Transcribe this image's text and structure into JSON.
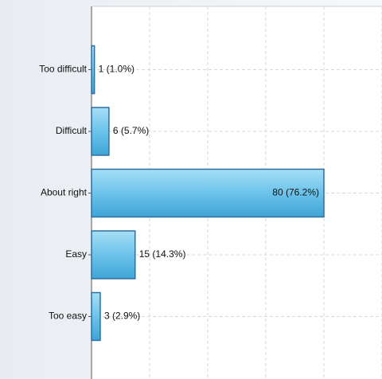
{
  "chart_data": {
    "type": "bar",
    "orientation": "horizontal",
    "categories": [
      "Too difficult",
      "Difficult",
      "About right",
      "Easy",
      "Too easy"
    ],
    "values": [
      1,
      6,
      80,
      15,
      3
    ],
    "value_labels": [
      "1 (1.0%)",
      "6 (5.7%)",
      "80 (76.2%)",
      "15 (14.3%)",
      "3 (2.9%)"
    ],
    "color": "#5bb8e4",
    "xlim": [
      0,
      100
    ],
    "xticks": [
      0,
      20,
      40,
      60,
      80,
      100
    ],
    "grid": true
  }
}
